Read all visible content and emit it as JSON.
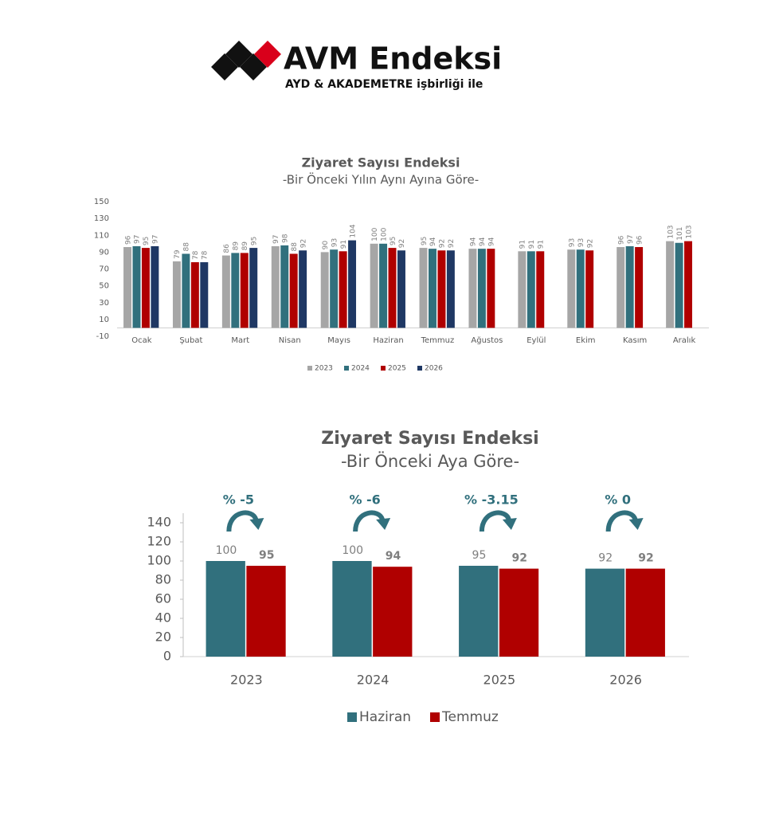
{
  "logo": {
    "title": "AVM Endeksi",
    "subtitle": "AYD & AKADEMETRE işbirliği ile"
  },
  "chart_data": [
    {
      "type": "bar",
      "title": "Ziyaret Sayısı Endeksi",
      "subtitle": "-Bir Önceki Yılın Aynı Ayına Göre-",
      "categories": [
        "Ocak",
        "Şubat",
        "Mart",
        "Nisan",
        "Mayıs",
        "Haziran",
        "Temmuz",
        "Ağustos",
        "Eylül",
        "Ekim",
        "Kasım",
        "Aralık"
      ],
      "series": [
        {
          "name": "2023",
          "color": "#a6a6a6",
          "values": [
            96,
            79,
            86,
            97,
            90,
            100,
            95,
            94,
            91,
            93,
            96,
            103
          ]
        },
        {
          "name": "2024",
          "color": "#31707d",
          "values": [
            97,
            88,
            89,
            98,
            93,
            100,
            94,
            94,
            91,
            93,
            97,
            101
          ]
        },
        {
          "name": "2025",
          "color": "#b00000",
          "values": [
            95,
            78,
            89,
            88,
            91,
            95,
            92,
            94,
            91,
            92,
            96,
            103
          ]
        },
        {
          "name": "2026",
          "color": "#1f3864",
          "values": [
            97,
            78,
            95,
            92,
            104,
            92,
            92,
            null,
            null,
            null,
            null,
            null
          ]
        }
      ],
      "ylim": [
        -10,
        150
      ],
      "yticks": [
        -10,
        10,
        30,
        50,
        70,
        90,
        110,
        130,
        150
      ],
      "grid": false,
      "legend": "bottom"
    },
    {
      "type": "bar",
      "title": "Ziyaret Sayısı Endeksi",
      "subtitle": "-Bir Önceki Aya Göre-",
      "categories": [
        "2023",
        "2024",
        "2025",
        "2026"
      ],
      "series": [
        {
          "name": "Haziran",
          "color": "#31707d",
          "values": [
            100,
            100,
            95,
            92
          ]
        },
        {
          "name": "Temmuz",
          "color": "#b00000",
          "values": [
            95,
            94,
            92,
            92
          ]
        }
      ],
      "annotations": [
        "% -5",
        "% -6",
        "% -3.15",
        "% 0"
      ],
      "ylim": [
        0,
        150
      ],
      "yticks": [
        0,
        20,
        40,
        60,
        80,
        100,
        120,
        140
      ],
      "grid": false,
      "legend": "bottom"
    }
  ]
}
